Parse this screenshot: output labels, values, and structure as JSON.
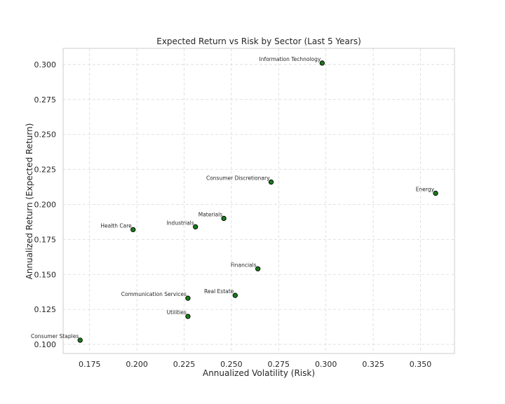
{
  "chart_data": {
    "type": "scatter",
    "title": "Expected Return vs Risk by Sector (Last 5 Years)",
    "xlabel": "Annualized Volatility (Risk)",
    "ylabel": "Annualized Return (Expected Return)",
    "xlim": [
      0.161,
      0.368
    ],
    "ylim": [
      0.0935,
      0.3115
    ],
    "xticks": [
      "0.175",
      "0.200",
      "0.225",
      "0.250",
      "0.275",
      "0.300",
      "0.325",
      "0.350"
    ],
    "yticks": [
      "0.100",
      "0.125",
      "0.150",
      "0.175",
      "0.200",
      "0.225",
      "0.250",
      "0.275",
      "0.300"
    ],
    "grid": true,
    "marker_color": "#1a7a1a",
    "marker_edge": "#000000",
    "points": [
      {
        "label": "Information Technology",
        "x": 0.298,
        "y": 0.301
      },
      {
        "label": "Consumer Discretionary",
        "x": 0.271,
        "y": 0.216
      },
      {
        "label": "Energy",
        "x": 0.358,
        "y": 0.208
      },
      {
        "label": "Materials",
        "x": 0.246,
        "y": 0.19
      },
      {
        "label": "Industrials",
        "x": 0.231,
        "y": 0.184
      },
      {
        "label": "Health Care",
        "x": 0.198,
        "y": 0.182
      },
      {
        "label": "Financials",
        "x": 0.264,
        "y": 0.154
      },
      {
        "label": "Real Estate",
        "x": 0.252,
        "y": 0.135
      },
      {
        "label": "Communication Services",
        "x": 0.227,
        "y": 0.133
      },
      {
        "label": "Utilities",
        "x": 0.227,
        "y": 0.12
      },
      {
        "label": "Consumer Staples",
        "x": 0.17,
        "y": 0.103
      }
    ]
  }
}
